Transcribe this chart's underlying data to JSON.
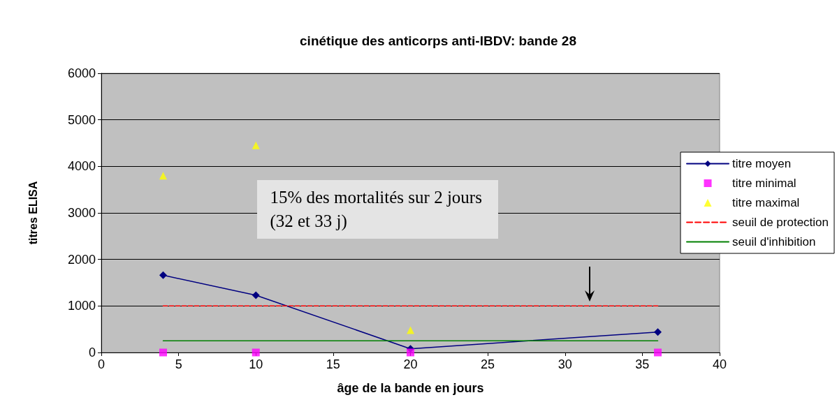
{
  "chart_data": {
    "type": "line",
    "title": "cinétique des anticorps anti-IBDV: bande 28",
    "xlabel": "âge de la bande en jours",
    "ylabel": "titres ELISA",
    "x": [
      4,
      10,
      20,
      36
    ],
    "series": [
      {
        "name": "titre moyen",
        "type": "line",
        "color": "#000080",
        "marker": "diamond",
        "line_style": "solid",
        "values": [
          1660,
          1230,
          80,
          440
        ]
      },
      {
        "name": "titre minimal",
        "type": "scatter",
        "color": "#ff00ff",
        "marker": "square",
        "values": [
          0,
          0,
          0,
          0
        ]
      },
      {
        "name": "titre maximal",
        "type": "scatter",
        "color": "#ffff00",
        "marker": "triangle",
        "values": [
          3800,
          4450,
          480,
          null
        ]
      },
      {
        "name": "seuil de protection",
        "type": "line",
        "color": "#ff0000",
        "marker": "none",
        "line_style": "dashed",
        "values": [
          1000,
          1000,
          1000,
          1000
        ]
      },
      {
        "name": "seuil d'inhibition",
        "type": "line",
        "color": "#008000",
        "marker": "none",
        "line_style": "solid",
        "values": [
          250,
          250,
          250,
          250
        ]
      }
    ],
    "xlim": [
      0,
      40
    ],
    "xticks": [
      0,
      5,
      10,
      15,
      20,
      25,
      30,
      35,
      40
    ],
    "ylim": [
      0,
      6000
    ],
    "yticks": [
      0,
      1000,
      2000,
      3000,
      4000,
      5000,
      6000
    ],
    "grid": "y",
    "legend": "right",
    "annotations": [
      "15% des mortalités sur 2 jours (32 et 33 j)"
    ]
  }
}
